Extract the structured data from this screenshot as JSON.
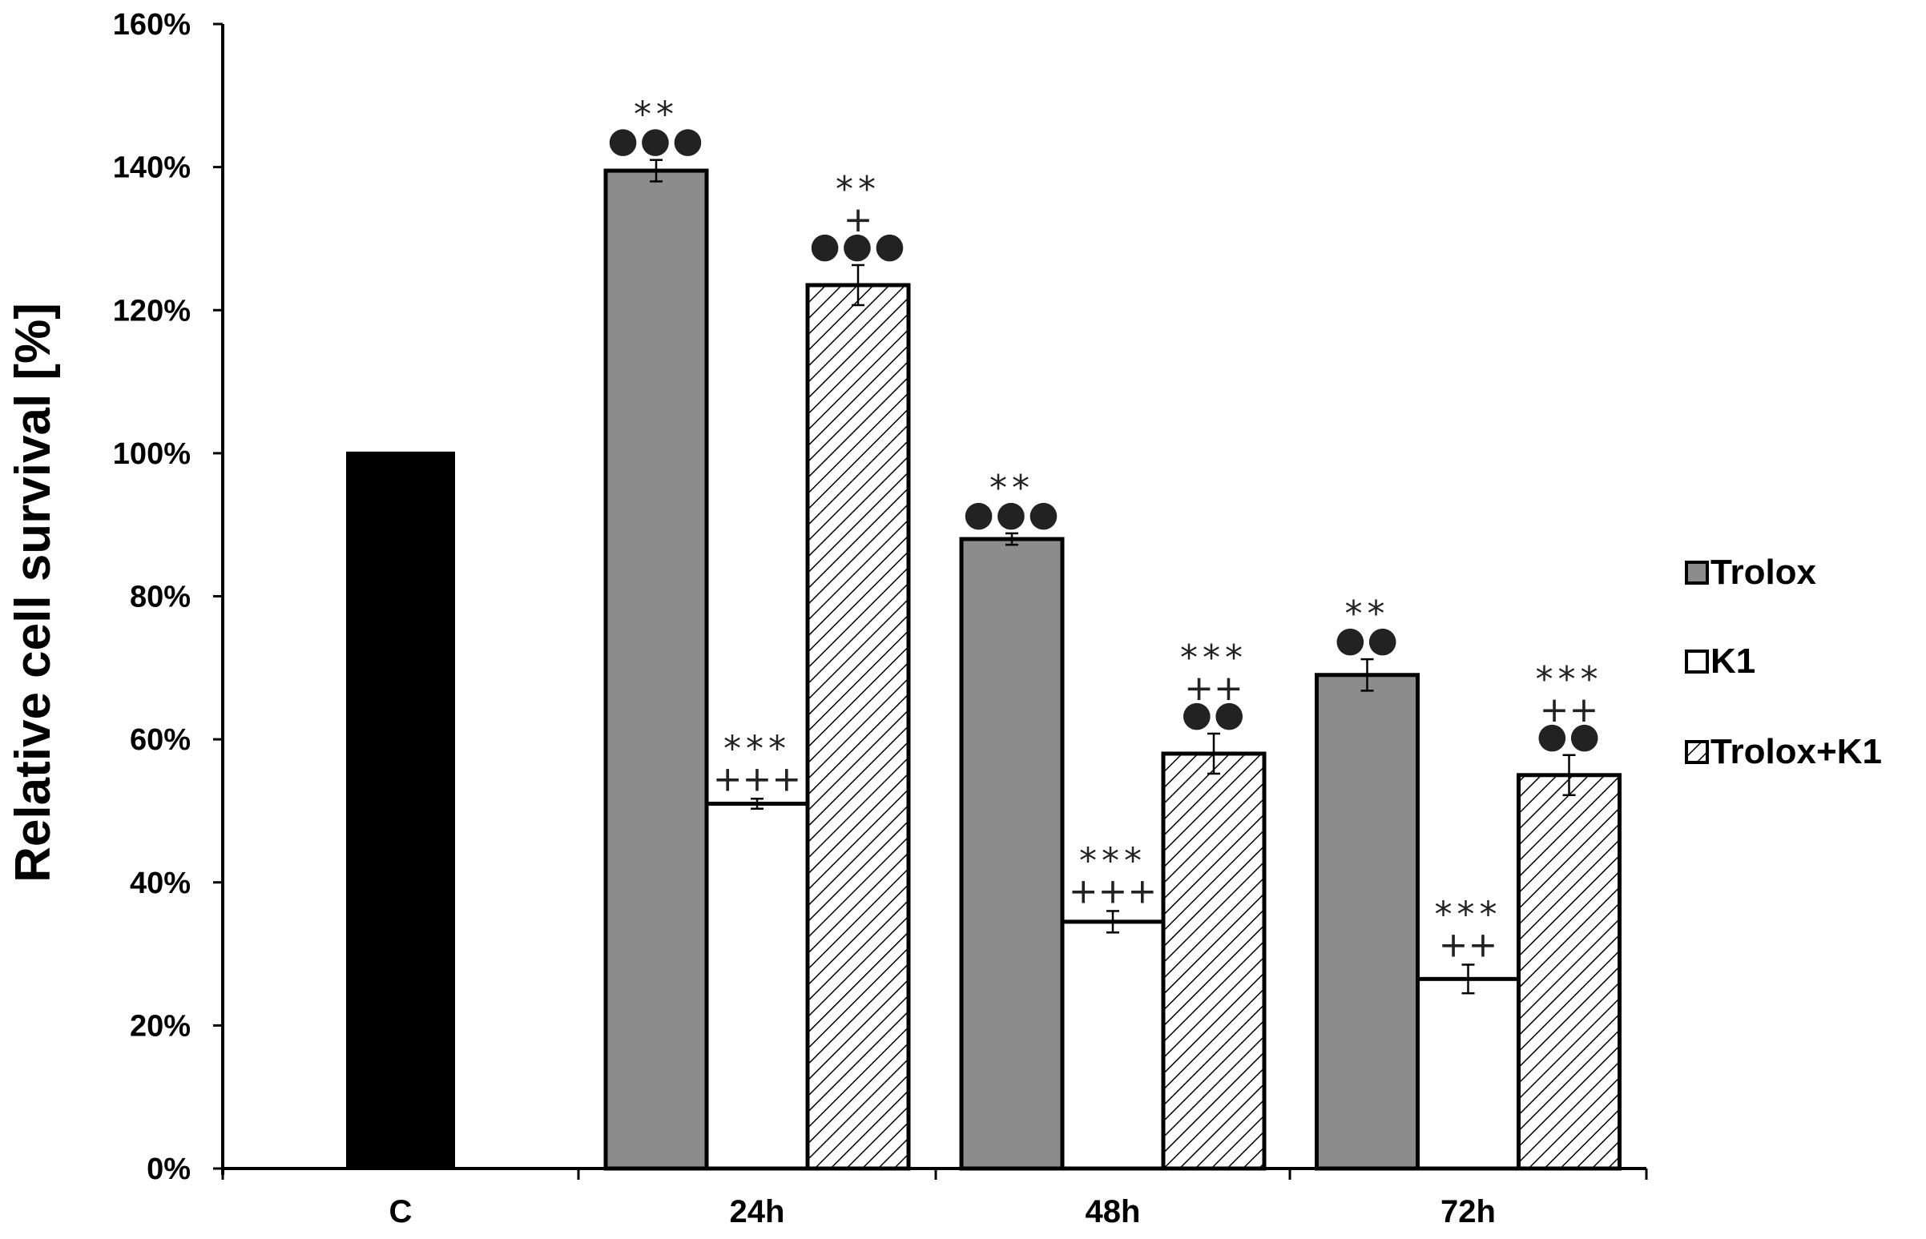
{
  "chart_data": {
    "type": "bar",
    "ylabel": "Relative cell survival [%]",
    "xlabel": "",
    "ylim": [
      0,
      160
    ],
    "yticks": [
      0,
      20,
      40,
      60,
      80,
      100,
      120,
      140,
      160
    ],
    "ytick_labels": [
      "0%",
      "20%",
      "40%",
      "60%",
      "80%",
      "100%",
      "120%",
      "140%",
      "160%"
    ],
    "categories": [
      "C",
      "24h",
      "48h",
      "72h"
    ],
    "legend_position": "right",
    "control": {
      "category": "C",
      "value": 100,
      "color": "#000000"
    },
    "series": [
      {
        "name": "Trolox",
        "fill": "gray",
        "color": "#8c8c8c",
        "values": [
          null,
          139.5,
          88,
          69
        ],
        "errors": [
          null,
          1.5,
          0.8,
          2.2
        ],
        "annotations": [
          null,
          [
            "**",
            "●●●"
          ],
          [
            "**",
            "●●●"
          ],
          [
            "**",
            "●●"
          ]
        ]
      },
      {
        "name": "K1",
        "fill": "white",
        "color": "#ffffff",
        "values": [
          null,
          51,
          34.5,
          26.5
        ],
        "errors": [
          null,
          0.7,
          1.5,
          2.0
        ],
        "annotations": [
          null,
          [
            "***",
            "+++"
          ],
          [
            "***",
            "+++"
          ],
          [
            "***",
            "++"
          ]
        ]
      },
      {
        "name": "Trolox+K1",
        "fill": "hatch",
        "color": "#ffffff",
        "values": [
          null,
          123.5,
          58,
          55
        ],
        "errors": [
          null,
          2.8,
          2.8,
          2.8
        ],
        "annotations": [
          null,
          [
            "**",
            "+",
            "●●●"
          ],
          [
            "***",
            "++",
            "●●"
          ],
          [
            "***",
            "++",
            "●●"
          ]
        ]
      }
    ]
  }
}
